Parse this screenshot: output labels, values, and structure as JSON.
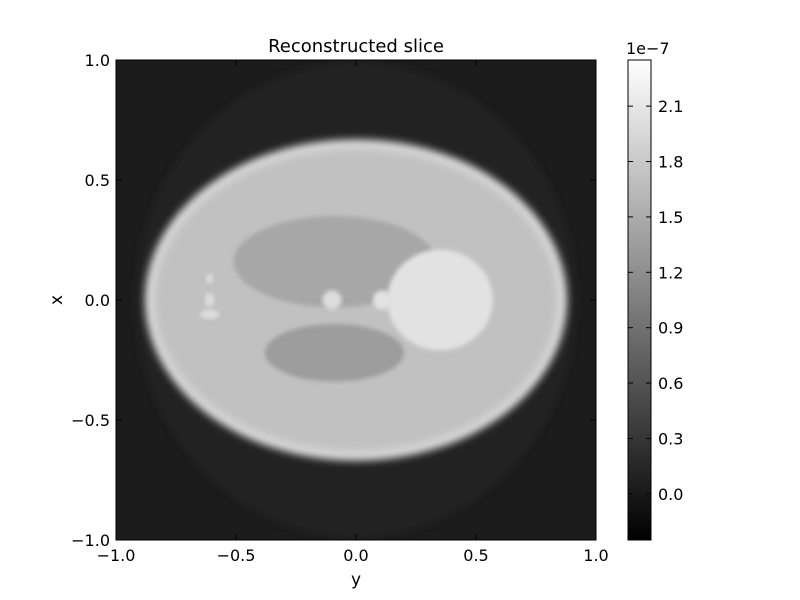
{
  "chart_data": {
    "type": "heatmap",
    "title": "Reconstructed slice",
    "xlabel": "y",
    "ylabel": "x",
    "xlim": [
      -1.0,
      1.0
    ],
    "ylim": [
      -1.0,
      1.0
    ],
    "xticks": [
      "−1.0",
      "−0.5",
      "0.0",
      "0.5",
      "1.0"
    ],
    "yticks": [
      "1.0",
      "0.5",
      "0.0",
      "−0.5",
      "−1.0"
    ],
    "xtick_values": [
      -1.0,
      -0.5,
      0.0,
      0.5,
      1.0
    ],
    "ytick_values": [
      1.0,
      0.5,
      0.0,
      -0.5,
      -1.0
    ],
    "colormap": "gray",
    "background_value": 0.0,
    "colorbar": {
      "range": [
        -2.5e-08,
        2.35e-07
      ],
      "offset_label": "1e−7",
      "ticks": [
        "0.0",
        "0.3",
        "0.6",
        "0.9",
        "1.2",
        "1.5",
        "1.8",
        "2.1"
      ],
      "tick_values": [
        0.0,
        0.3,
        0.6,
        0.9,
        1.2,
        1.5,
        1.8,
        2.1
      ]
    },
    "grid": false,
    "legend": "none",
    "image_regions": [
      {
        "name": "reconstruction-disk",
        "center": [
          0.0,
          0.0
        ],
        "semi_axes": [
          0.92,
          0.99
        ],
        "value": 8e-09
      },
      {
        "name": "outer-ellipse-rim",
        "center": [
          0.0,
          0.0
        ],
        "semi_axes": [
          0.88,
          0.67
        ],
        "value": 1.95e-07
      },
      {
        "name": "body-ellipse",
        "center": [
          0.0,
          0.0
        ],
        "semi_axes": [
          0.84,
          0.63
        ],
        "value": 1.72e-07
      },
      {
        "name": "upper-dark-ellipse",
        "center": [
          -0.09,
          0.16
        ],
        "semi_axes": [
          0.42,
          0.19
        ],
        "value": 1.45e-07
      },
      {
        "name": "lower-dark-ellipse",
        "center": [
          -0.09,
          -0.22
        ],
        "semi_axes": [
          0.29,
          0.12
        ],
        "value": 1.35e-07
      },
      {
        "name": "bright-circle",
        "center": [
          0.35,
          0.0
        ],
        "semi_axes": [
          0.22,
          0.21
        ],
        "value": 2.05e-07
      },
      {
        "name": "small-spot-left",
        "center": [
          -0.1,
          0.0
        ],
        "semi_axes": [
          0.04,
          0.04
        ],
        "value": 2e-07
      },
      {
        "name": "small-spot-right",
        "center": [
          0.11,
          0.0
        ],
        "semi_axes": [
          0.04,
          0.04
        ],
        "value": 2.05e-07
      },
      {
        "name": "left-spot-1",
        "center": [
          -0.61,
          0.09
        ],
        "semi_axes": [
          0.015,
          0.02
        ],
        "value": 2e-07
      },
      {
        "name": "left-spot-2",
        "center": [
          -0.61,
          0.0
        ],
        "semi_axes": [
          0.02,
          0.03
        ],
        "value": 2e-07
      },
      {
        "name": "left-spot-3",
        "center": [
          -0.61,
          -0.06
        ],
        "semi_axes": [
          0.04,
          0.02
        ],
        "value": 2e-07
      }
    ]
  }
}
